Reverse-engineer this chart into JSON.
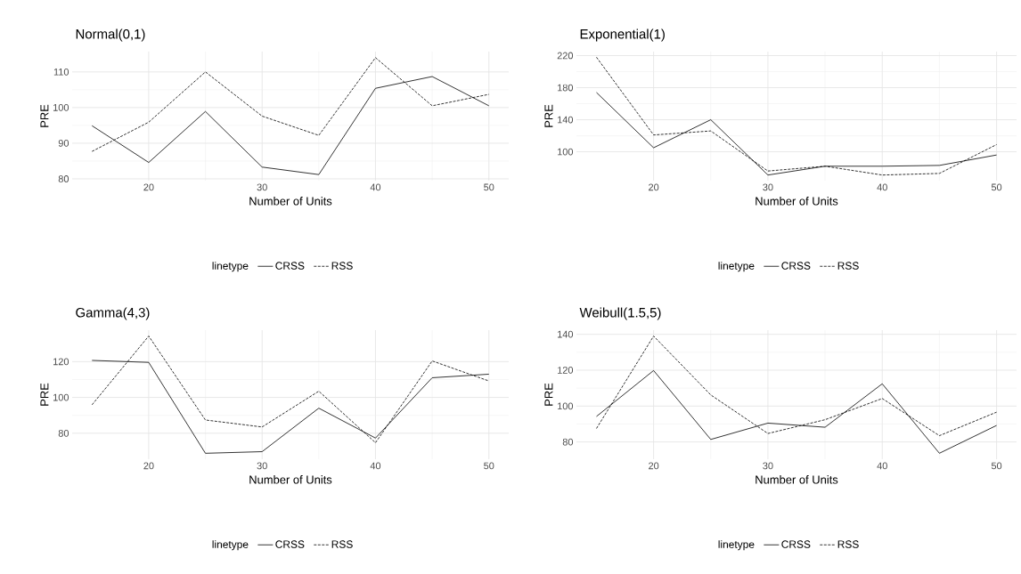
{
  "chart_data": [
    {
      "type": "line",
      "title": "Normal(0,1)",
      "xlabel": "Number of Units",
      "ylabel": "PRE",
      "legend_title": "linetype",
      "legend": "bottom",
      "grid": true,
      "x": [
        15,
        20,
        25,
        30,
        35,
        40,
        45,
        50
      ],
      "xlim": [
        13.25,
        51.75
      ],
      "xticks": [
        20,
        30,
        40,
        50
      ],
      "ylim": [
        79.5,
        115.7
      ],
      "yticks": [
        80,
        90,
        100,
        110
      ],
      "series": [
        {
          "name": "CRSS",
          "color": "#000000",
          "line_style": "solid",
          "values": [
            94.9,
            84.6,
            98.9,
            83.3,
            81.2,
            105.4,
            108.7,
            100.5
          ]
        },
        {
          "name": "RSS",
          "color": "#000000",
          "line_style": "dashed",
          "values": [
            87.7,
            95.9,
            110,
            97.6,
            92.2,
            114,
            100.5,
            103.7
          ]
        }
      ]
    },
    {
      "type": "line",
      "title": "Exponential(1)",
      "xlabel": "Number of Units",
      "ylabel": "PRE",
      "legend_title": "linetype",
      "legend": "bottom",
      "grid": true,
      "x": [
        15,
        20,
        25,
        30,
        35,
        40,
        45,
        50
      ],
      "xlim": [
        13.25,
        51.75
      ],
      "xticks": [
        20,
        30,
        40,
        50
      ],
      "ylim": [
        64,
        225
      ],
      "yticks": [
        100,
        140,
        180,
        220
      ],
      "series": [
        {
          "name": "CRSS",
          "color": "#000000",
          "line_style": "solid",
          "values": [
            174,
            105,
            140,
            71,
            82,
            82,
            83,
            96
          ]
        },
        {
          "name": "RSS",
          "color": "#000000",
          "line_style": "dashed",
          "values": [
            218,
            121,
            126,
            76,
            82,
            71,
            73,
            109
          ]
        }
      ]
    },
    {
      "type": "line",
      "title": "Gamma(4,3)",
      "xlabel": "Number of Units",
      "ylabel": "PRE",
      "legend_title": "linetype",
      "legend": "bottom",
      "grid": true,
      "x": [
        15,
        20,
        25,
        30,
        35,
        40,
        45,
        50
      ],
      "xlim": [
        13.25,
        51.75
      ],
      "xticks": [
        20,
        30,
        40,
        50
      ],
      "ylim": [
        65.5,
        137.6
      ],
      "yticks": [
        80,
        100,
        120
      ],
      "series": [
        {
          "name": "CRSS",
          "color": "#000000",
          "line_style": "solid",
          "values": [
            120.7,
            119.6,
            68.8,
            69.7,
            94,
            77.3,
            111,
            113
          ]
        },
        {
          "name": "RSS",
          "color": "#000000",
          "line_style": "dashed",
          "values": [
            95.9,
            134.3,
            87.4,
            83.5,
            103.5,
            74.7,
            120.4,
            109.2
          ]
        }
      ]
    },
    {
      "type": "line",
      "title": "Weibull(1.5,5)",
      "xlabel": "Number of Units",
      "ylabel": "PRE",
      "legend_title": "linetype",
      "legend": "bottom",
      "grid": true,
      "x": [
        15,
        20,
        25,
        30,
        35,
        40,
        45,
        50
      ],
      "xlim": [
        13.25,
        51.75
      ],
      "xticks": [
        20,
        30,
        40,
        50
      ],
      "ylim": [
        70.4,
        142.3
      ],
      "yticks": [
        80,
        100,
        120,
        140
      ],
      "series": [
        {
          "name": "CRSS",
          "color": "#000000",
          "line_style": "solid",
          "values": [
            94.2,
            119.8,
            81.4,
            90.5,
            88.2,
            112.4,
            73.7,
            89.2
          ]
        },
        {
          "name": "RSS",
          "color": "#000000",
          "line_style": "dashed",
          "values": [
            87.5,
            139,
            106.2,
            84.7,
            92.4,
            104.2,
            83.5,
            96.6
          ]
        }
      ]
    }
  ]
}
